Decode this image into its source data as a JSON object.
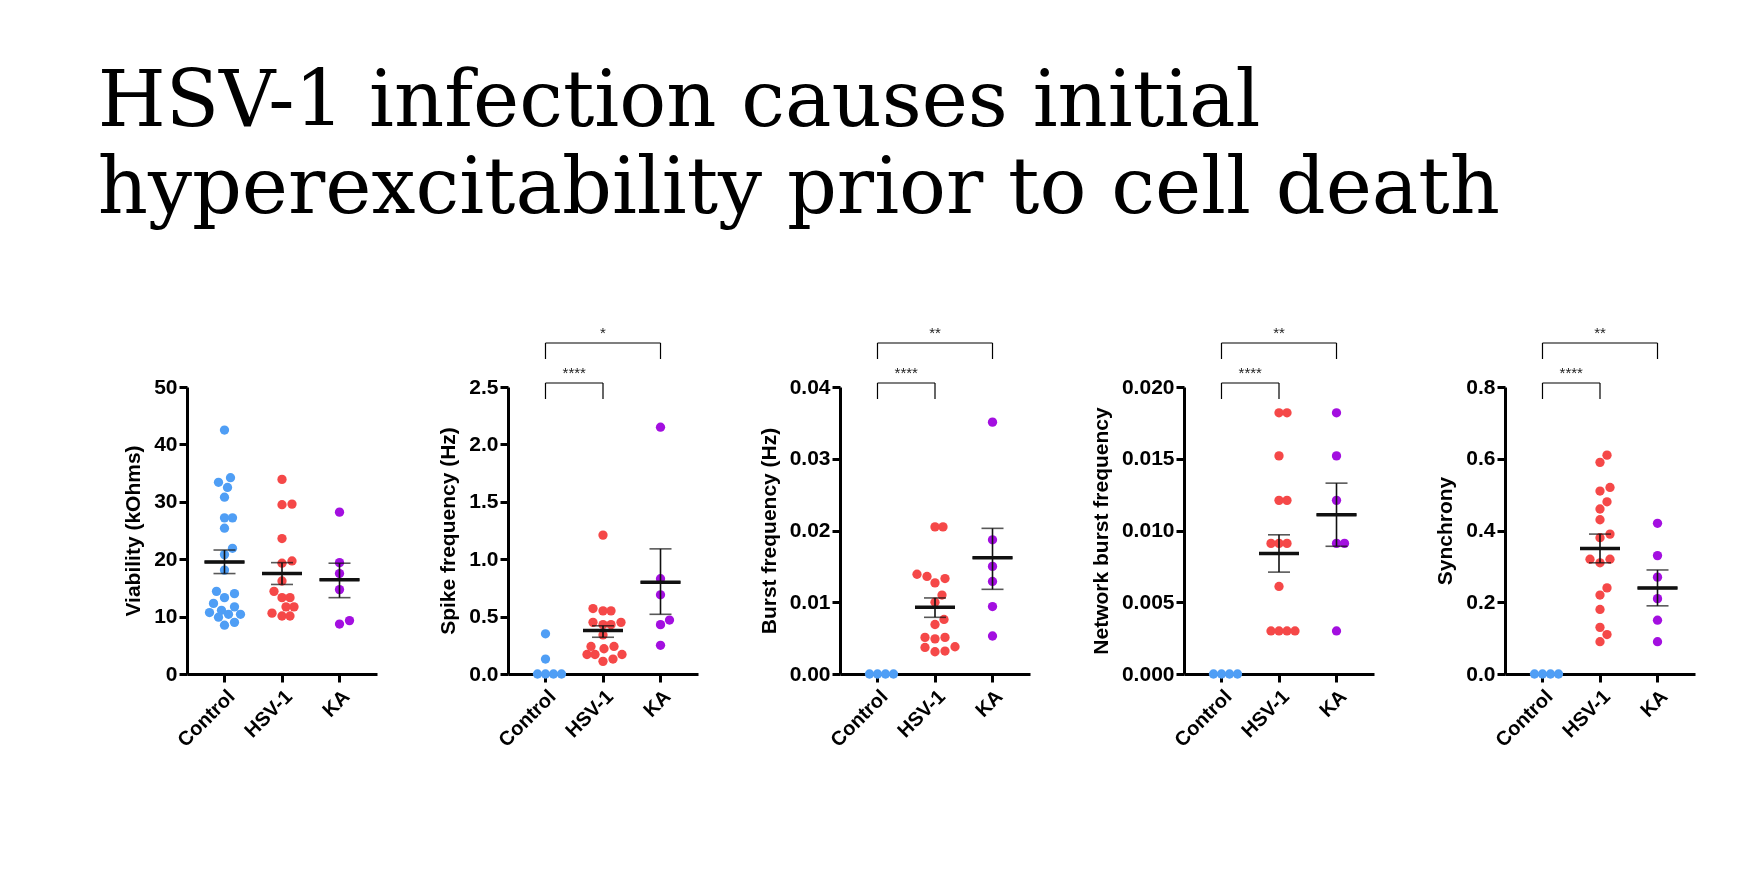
{
  "chart_data": [
    {
      "type": "scatter",
      "title": "HSV-1 infection causes initial hyperexcitability prior to cell death",
      "categories": [
        "Control",
        "HSV-1",
        "KA"
      ],
      "ylabel": "Viability (kOhms)",
      "ylim": [
        0,
        50
      ],
      "yticks": [
        0,
        10,
        20,
        30,
        40,
        50
      ],
      "series": [
        {
          "color": "#4f9ef5",
          "marker": "circle",
          "x": [
            "Control",
            "Control",
            "Control",
            "Control",
            "Control",
            "Control",
            "Control",
            "Control",
            "Control",
            "Control",
            "Control",
            "Control",
            "Control",
            "Control",
            "Control",
            "Control",
            "Control",
            "Control",
            "Control",
            "Control",
            "Control",
            "Control",
            "Control"
          ],
          "values": [
            42.5,
            34.2,
            33.4,
            32.5,
            30.8,
            27.2,
            27.2,
            25.4,
            21.9,
            20.8,
            18.1,
            14.4,
            14.0,
            13.3,
            12.3,
            11.7,
            11.1,
            10.4,
            9.9,
            10.7,
            10.4,
            8.5,
            9.0
          ]
        },
        {
          "color": "#f54848",
          "marker": "circle",
          "x": [
            "HSV-1",
            "HSV-1",
            "HSV-1",
            "HSV-1",
            "HSV-1",
            "HSV-1",
            "HSV-1",
            "HSV-1",
            "HSV-1",
            "HSV-1",
            "HSV-1",
            "HSV-1",
            "HSV-1",
            "HSV-1",
            "HSV-1"
          ],
          "values": [
            33.9,
            29.5,
            29.6,
            23.6,
            19.3,
            19.7,
            16.2,
            14.4,
            13.3,
            13.3,
            11.7,
            11.7,
            10.6,
            10.1,
            10.1
          ]
        },
        {
          "color": "#a30fe0",
          "marker": "circle",
          "x": [
            "KA",
            "KA",
            "KA",
            "KA",
            "KA",
            "KA"
          ],
          "values": [
            28.2,
            19.4,
            17.5,
            14.7,
            8.7,
            9.3
          ]
        },
        {
          "type": "box",
          "color": "#111111",
          "x": [
            "Control",
            "HSV-1",
            "KA"
          ],
          "boxes": [
            {
              "low": 17.5,
              "q1": 19.5,
              "median": 19.5,
              "q3": 19.5,
              "high": 21.6
            },
            {
              "low": 15.6,
              "q1": 17.5,
              "median": 17.5,
              "q3": 17.5,
              "high": 19.4
            },
            {
              "low": 13.3,
              "q1": 16.4,
              "median": 16.4,
              "q3": 16.4,
              "high": 19.3
            }
          ]
        }
      ]
    },
    {
      "type": "scatter",
      "categories": [
        "Control",
        "HSV-1",
        "KA"
      ],
      "ylabel": "Spike frequency (Hz)",
      "ylim": [
        0,
        2.5
      ],
      "yticks": [
        {
          "value": 0,
          "label": "0.0"
        },
        0.5,
        {
          "value": 1,
          "label": "1.0"
        },
        1.5,
        {
          "value": 2,
          "label": "2.0"
        },
        2.5
      ],
      "annotations": [
        "****",
        "*"
      ],
      "series": [
        {
          "color": "#4f9ef5",
          "marker": "circle",
          "x": [
            "Control",
            "Control",
            "Control",
            "Control",
            "Control",
            "Control"
          ],
          "values": [
            0.35,
            0.13,
            0,
            0,
            0,
            0
          ]
        },
        {
          "color": "#f54848",
          "marker": "circle",
          "x": [
            "HSV-1",
            "HSV-1",
            "HSV-1",
            "HSV-1",
            "HSV-1",
            "HSV-1",
            "HSV-1",
            "HSV-1",
            "HSV-1",
            "HSV-1",
            "HSV-1",
            "HSV-1",
            "HSV-1",
            "HSV-1",
            "HSV-1",
            "HSV-1",
            "HSV-1"
          ],
          "values": [
            1.21,
            0.57,
            0.55,
            0.55,
            0.43,
            0.43,
            0.45,
            0.45,
            0.34,
            0.24,
            0.24,
            0.22,
            0.17,
            0.17,
            0.17,
            0.13,
            0.11
          ]
        },
        {
          "color": "#a30fe0",
          "marker": "circle",
          "x": [
            "KA",
            "KA",
            "KA",
            "KA",
            "KA",
            "KA"
          ],
          "values": [
            2.15,
            0.83,
            0.69,
            0.47,
            0.43,
            0.25
          ]
        },
        {
          "type": "box",
          "color": "#111111",
          "x": [
            "Control",
            "HSV-1",
            "KA"
          ],
          "boxes": [
            null,
            {
              "low": 0.32,
              "q1": 0.38,
              "median": 0.38,
              "q3": 0.38,
              "high": 0.42
            },
            {
              "low": 0.52,
              "q1": 0.8,
              "median": 0.8,
              "q3": 0.8,
              "high": 1.09
            }
          ]
        }
      ]
    },
    {
      "type": "scatter",
      "categories": [
        "Control",
        "HSV-1",
        "KA"
      ],
      "ylabel": "Burst frequency (Hz)",
      "ylim": [
        0,
        0.04
      ],
      "yticks": [
        {
          "value": 0,
          "label": "0.00"
        },
        0.01,
        0.02,
        0.03,
        0.04
      ],
      "annotations": [
        "****",
        "**"
      ],
      "series": [
        {
          "color": "#4f9ef5",
          "marker": "circle",
          "x": [
            "Control",
            "Control",
            "Control",
            "Control"
          ],
          "values": [
            0,
            0,
            0,
            0
          ]
        },
        {
          "color": "#f54848",
          "marker": "circle",
          "x": [
            "HSV-1",
            "HSV-1",
            "HSV-1",
            "HSV-1",
            "HSV-1",
            "HSV-1",
            "HSV-1",
            "HSV-1",
            "HSV-1",
            "HSV-1",
            "HSV-1",
            "HSV-1",
            "HSV-1",
            "HSV-1",
            "HSV-1",
            "HSV-1",
            "HSV-1"
          ],
          "values": [
            0.0205,
            0.0205,
            0.0133,
            0.0139,
            0.0136,
            0.0127,
            0.011,
            0.01,
            0.0076,
            0.0069,
            0.0049,
            0.0051,
            0.0051,
            0.0038,
            0.0032,
            0.0031,
            0.0037
          ]
        },
        {
          "color": "#a30fe0",
          "marker": "circle",
          "x": [
            "KA",
            "KA",
            "KA",
            "KA",
            "KA",
            "KA"
          ],
          "values": [
            0.0351,
            0.0187,
            0.015,
            0.0129,
            0.0094,
            0.0053
          ]
        },
        {
          "type": "box",
          "color": "#111111",
          "x": [
            "Control",
            "HSV-1",
            "KA"
          ],
          "boxes": [
            null,
            {
              "low": 0.0079,
              "q1": 0.0093,
              "median": 0.0093,
              "q3": 0.0093,
              "high": 0.0106
            },
            {
              "low": 0.0118,
              "q1": 0.0162,
              "median": 0.0162,
              "q3": 0.0162,
              "high": 0.0203
            }
          ]
        }
      ]
    },
    {
      "type": "scatter",
      "categories": [
        "Control",
        "HSV-1",
        "KA"
      ],
      "ylabel": "Network burst frequency",
      "ylim": [
        0,
        0.02
      ],
      "yticks": [
        {
          "value": 0,
          "label": "0.000"
        },
        0.005,
        {
          "value": 0.01,
          "label": "0.010"
        },
        0.015,
        {
          "value": 0.02,
          "label": "0.020"
        }
      ],
      "annotations": [
        "****",
        "**"
      ],
      "series": [
        {
          "color": "#4f9ef5",
          "marker": "circle",
          "x": [
            "Control",
            "Control",
            "Control",
            "Control"
          ],
          "values": [
            0,
            0,
            0,
            0
          ]
        },
        {
          "color": "#f54848",
          "marker": "circle",
          "x": [
            "HSV-1",
            "HSV-1",
            "HSV-1",
            "HSV-1",
            "HSV-1",
            "HSV-1",
            "HSV-1",
            "HSV-1",
            "HSV-1",
            "HSV-1",
            "HSV-1",
            "HSV-1",
            "HSV-1"
          ],
          "values": [
            0.0182,
            0.0182,
            0.0152,
            0.0121,
            0.0121,
            0.0091,
            0.0091,
            0.0091,
            0.0061,
            0.003,
            0.003,
            0.003,
            0.003
          ]
        },
        {
          "color": "#a30fe0",
          "marker": "circle",
          "x": [
            "KA",
            "KA",
            "KA",
            "KA",
            "KA",
            "KA"
          ],
          "values": [
            0.0182,
            0.0152,
            0.0121,
            0.0091,
            0.0091,
            0.003
          ]
        },
        {
          "type": "box",
          "color": "#111111",
          "x": [
            "Control",
            "HSV-1",
            "KA"
          ],
          "boxes": [
            null,
            {
              "low": 0.0071,
              "q1": 0.0084,
              "median": 0.0084,
              "q3": 0.0084,
              "high": 0.0097
            },
            {
              "low": 0.0089,
              "q1": 0.0111,
              "median": 0.0111,
              "q3": 0.0111,
              "high": 0.0133
            }
          ]
        }
      ]
    },
    {
      "type": "scatter",
      "categories": [
        "Control",
        "HSV-1",
        "KA"
      ],
      "ylabel": "Synchrony",
      "ylim": [
        0,
        0.8
      ],
      "yticks": [
        {
          "value": 0,
          "label": "0.0"
        },
        0.2,
        0.4,
        0.6,
        0.8
      ],
      "annotations": [
        "****",
        "**"
      ],
      "series": [
        {
          "color": "#4f9ef5",
          "marker": "circle",
          "x": [
            "Control",
            "Control",
            "Control",
            "Control"
          ],
          "values": [
            0,
            0,
            0,
            0
          ]
        },
        {
          "color": "#f54848",
          "marker": "circle",
          "x": [
            "HSV-1",
            "HSV-1",
            "HSV-1",
            "HSV-1",
            "HSV-1",
            "HSV-1",
            "HSV-1",
            "HSV-1",
            "HSV-1",
            "HSV-1",
            "HSV-1",
            "HSV-1",
            "HSV-1",
            "HSV-1",
            "HSV-1",
            "HSV-1",
            "HSV-1",
            "HSV-1"
          ],
          "values": [
            0.61,
            0.59,
            0.52,
            0.51,
            0.48,
            0.46,
            0.43,
            0.39,
            0.38,
            0.31,
            0.32,
            0.32,
            0.24,
            0.22,
            0.18,
            0.13,
            0.11,
            0.09
          ]
        },
        {
          "color": "#a30fe0",
          "marker": "circle",
          "x": [
            "KA",
            "KA",
            "KA",
            "KA",
            "KA",
            "KA"
          ],
          "values": [
            0.42,
            0.33,
            0.27,
            0.21,
            0.15,
            0.09
          ]
        },
        {
          "type": "box",
          "color": "#111111",
          "x": [
            "Control",
            "HSV-1",
            "KA"
          ],
          "boxes": [
            null,
            {
              "low": 0.31,
              "q1": 0.35,
              "median": 0.35,
              "q3": 0.35,
              "high": 0.39
            },
            {
              "low": 0.19,
              "q1": 0.24,
              "median": 0.24,
              "q3": 0.24,
              "high": 0.29
            }
          ]
        }
      ]
    }
  ]
}
